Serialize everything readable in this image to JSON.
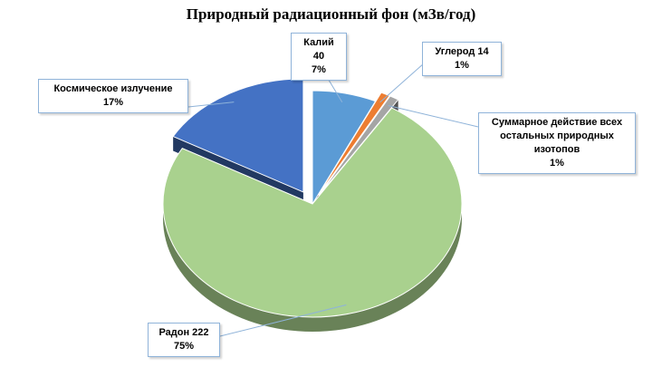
{
  "chart_data": {
    "type": "pie",
    "title": "Природный радиационный фон (мЗв/год)",
    "slices": [
      {
        "name": "Калий 40",
        "value": 7,
        "label": "7%",
        "color": "#5b9bd5"
      },
      {
        "name": "Углерод 14",
        "value": 1,
        "label": "1%",
        "color": "#ed7d31"
      },
      {
        "name": "Суммарное действие всех остальных природных изотопов",
        "value": 1,
        "label": "1%",
        "color": "#a5a5a5"
      },
      {
        "name": "Радон 222",
        "value": 75,
        "label": "75%",
        "color": "#a9d18e"
      },
      {
        "name": "Космическое излучение",
        "value": 17,
        "label": "17%",
        "color": "#4472c4"
      }
    ],
    "legend": "none",
    "style": "3d-exploded"
  }
}
